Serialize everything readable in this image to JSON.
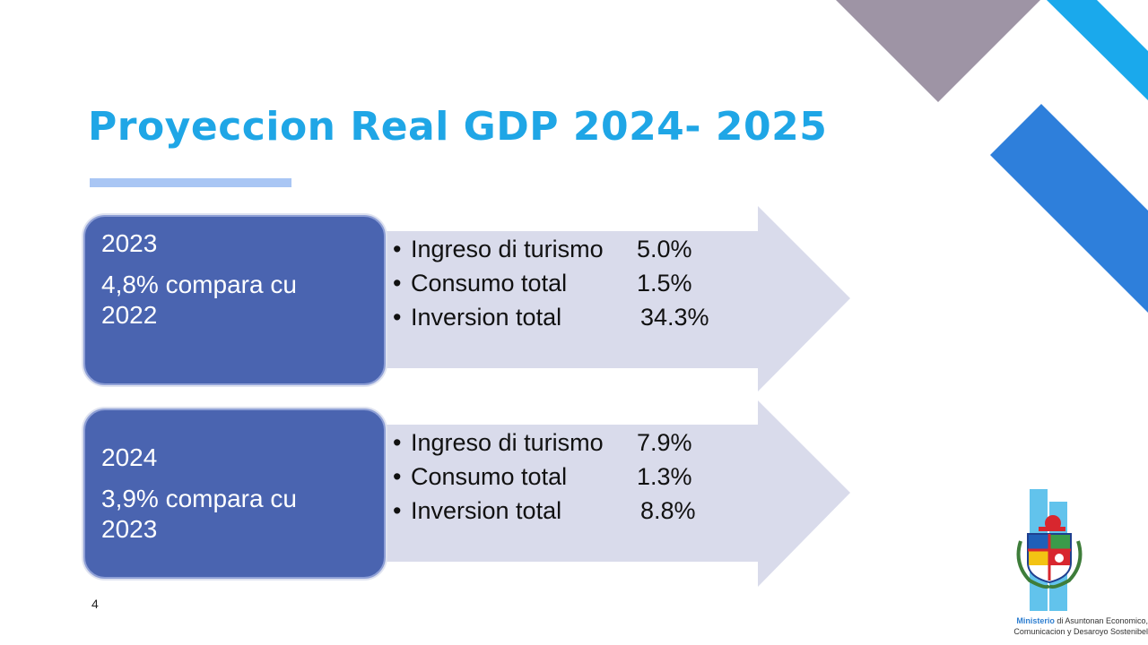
{
  "slide": {
    "title": "Proyeccion Real GDP 2024- 2025",
    "page_number": "4"
  },
  "blocks": [
    {
      "year": "2023",
      "comparison": "4,8% compara cu\n2022",
      "items": [
        {
          "bullet": "•",
          "label": "Ingreso di turismo",
          "value": "5.0%"
        },
        {
          "bullet": "•",
          "label": "Consumo total",
          "value": "1.5%"
        },
        {
          "bullet": "•",
          "label": "Inversion total",
          "value": "34.3%"
        }
      ]
    },
    {
      "year": "2024",
      "comparison": "3,9% compara cu\n2023",
      "items": [
        {
          "bullet": "•",
          "label": "Ingreso di turismo",
          "value": "7.9%"
        },
        {
          "bullet": "•",
          "label": "Consumo total",
          "value": "1.3%"
        },
        {
          "bullet": "•",
          "label": "Inversion total",
          "value": "8.8%"
        }
      ]
    }
  ],
  "footer": {
    "ministry_highlight": "Ministerio",
    "ministry_rest": " di Asuntonan Economico,",
    "ministry_line2": "Comunicacion y Desaroyo Sostenibel"
  },
  "colors": {
    "title": "#1fa6e6",
    "box_fill": "#4a64b0",
    "arrow_fill": "#d9dbeb",
    "deco_gray": "#9e94a5",
    "deco_cyan": "#1aa9ec",
    "deco_blue": "#2e7fdb"
  },
  "icons": [
    "coat-of-arms-logo"
  ]
}
